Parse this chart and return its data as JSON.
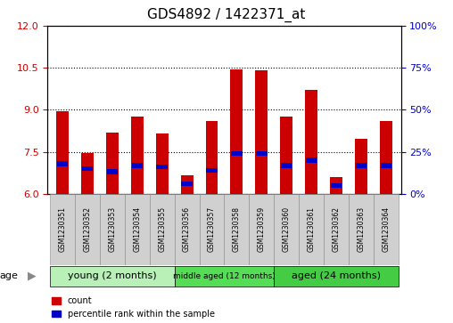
{
  "title": "GDS4892 / 1422371_at",
  "samples": [
    "GSM1230351",
    "GSM1230352",
    "GSM1230353",
    "GSM1230354",
    "GSM1230355",
    "GSM1230356",
    "GSM1230357",
    "GSM1230358",
    "GSM1230359",
    "GSM1230360",
    "GSM1230361",
    "GSM1230362",
    "GSM1230363",
    "GSM1230364"
  ],
  "count_values": [
    8.95,
    7.45,
    8.2,
    8.75,
    8.15,
    6.65,
    8.6,
    10.45,
    10.4,
    8.75,
    9.7,
    6.6,
    7.95,
    8.6
  ],
  "percentile_values": [
    18,
    15,
    13,
    17,
    16,
    6,
    14,
    24,
    24,
    17,
    20,
    5,
    17,
    17
  ],
  "ylim_left": [
    6,
    12
  ],
  "ylim_right": [
    0,
    100
  ],
  "yticks_left": [
    6,
    7.5,
    9,
    10.5,
    12
  ],
  "yticks_right": [
    0,
    25,
    50,
    75,
    100
  ],
  "bar_color": "#cc0000",
  "percentile_color": "#0000cc",
  "bar_width": 0.5,
  "groups_info": [
    {
      "start": 0,
      "end": 4,
      "label": "young (2 months)",
      "color": "#b8f0b8"
    },
    {
      "start": 5,
      "end": 8,
      "label": "middle aged (12 months)",
      "color": "#55dd55"
    },
    {
      "start": 9,
      "end": 13,
      "label": "aged (24 months)",
      "color": "#44cc44"
    }
  ],
  "legend_count": "count",
  "legend_percentile": "percentile rank within the sample",
  "age_label": "age",
  "plot_bg_color": "#ffffff",
  "tick_color_left": "#cc0000",
  "tick_color_right": "#0000cc",
  "xtick_bg_color": "#d0d0d0"
}
